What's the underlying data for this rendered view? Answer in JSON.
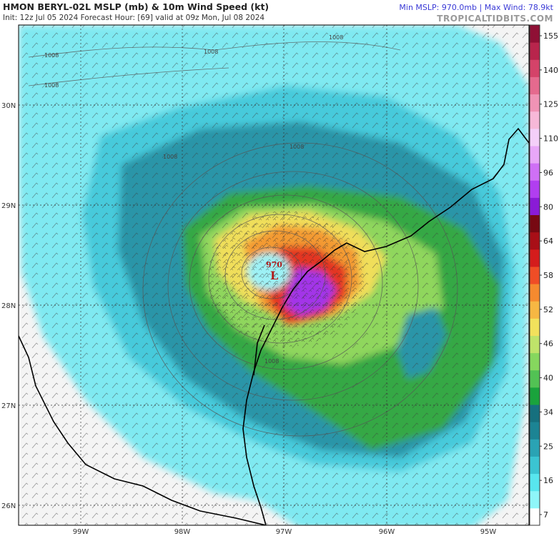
{
  "header": {
    "title": "HMON BERYL-02L MSLP (mb) & 10m Wind Speed (kt)",
    "subtitle": "Init: 12z Jul 05 2024   Forecast Hour: [69]   valid at 09z Mon, Jul 08 2024",
    "stats": "Min MSLP: 970.0mb | Max Wind: 78.9kt",
    "site": "TROPICALTIDBITS.COM"
  },
  "map": {
    "lat_labels": [
      "30N",
      "29N",
      "28N",
      "27N",
      "26N"
    ],
    "lon_labels": [
      "99W",
      "98W",
      "97W",
      "96W",
      "95W"
    ],
    "center_pressure": "970",
    "low_symbol": "L",
    "isobar_labels": [
      "1008",
      "1008",
      "1008",
      "1008",
      "1008",
      "1008",
      "1008"
    ]
  },
  "colorbar": {
    "ticks": [
      "155",
      "140",
      "125",
      "110",
      "96",
      "80",
      "64",
      "58",
      "52",
      "46",
      "40",
      "34",
      "25",
      "16",
      "7"
    ],
    "colors": [
      "#ffffff",
      "#8ff6f9",
      "#58e6ee",
      "#3bc4d2",
      "#2aa3b4",
      "#1c8494",
      "#16707e",
      "#1aa33c",
      "#52c254",
      "#86d75e",
      "#bfe36a",
      "#f2e15c",
      "#f6b743",
      "#f58a2f",
      "#ef4d26",
      "#d41c1c",
      "#a80f17",
      "#770912",
      "#8a1bd6",
      "#b13ef0",
      "#cf70f6",
      "#e8a7f8",
      "#f4cff9",
      "#f7b8d8",
      "#f093b5",
      "#e56a8e",
      "#d44369",
      "#b8254c",
      "#8f1035"
    ]
  }
}
